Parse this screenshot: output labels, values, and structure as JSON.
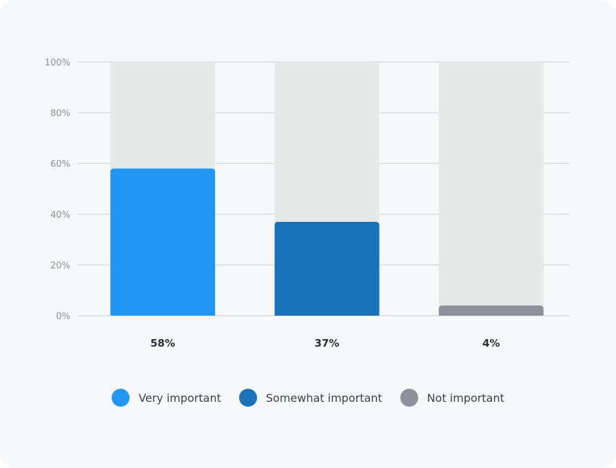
{
  "chart_data": {
    "type": "bar",
    "categories": [
      "Very important",
      "Somewhat important",
      "Not important"
    ],
    "values": [
      58,
      37,
      4
    ],
    "value_labels": [
      "58%",
      "37%",
      "4%"
    ],
    "colors": [
      "#2196f3",
      "#1a72b8",
      "#8c9199"
    ],
    "track_color": "#e7e8e8",
    "grid_color": "#d9dbde",
    "ylim": [
      0,
      100
    ],
    "yticks": [
      0,
      20,
      40,
      60,
      80,
      100
    ],
    "ytick_labels": [
      "0%",
      "20%",
      "40%",
      "60%",
      "80%",
      "100%"
    ],
    "grid": true,
    "legend_placement": "bottom"
  },
  "legend": {
    "items": [
      {
        "label": "Very important",
        "color": "#2196f3"
      },
      {
        "label": "Somewhat important",
        "color": "#1a72b8"
      },
      {
        "label": "Not important",
        "color": "#8c9199"
      }
    ]
  }
}
